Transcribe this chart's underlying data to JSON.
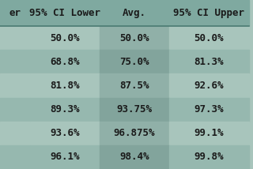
{
  "columns": [
    "95% CI Lower",
    "Avg.",
    "95% CI Upper"
  ],
  "rows": [
    [
      "50.0%",
      "50.0%",
      "50.0%"
    ],
    [
      "68.8%",
      "75.0%",
      "81.3%"
    ],
    [
      "81.8%",
      "87.5%",
      "92.6%"
    ],
    [
      "89.3%",
      "93.75%",
      "97.3%"
    ],
    [
      "93.6%",
      "96.875%",
      "99.1%"
    ],
    [
      "96.1%",
      "98.4%",
      "99.8%"
    ]
  ],
  "header_bg": "#7fa9a0",
  "row_bg_light": "#a8c5bc",
  "row_bg_dark": "#96b8af",
  "avg_col_bg_light": "#90b0a8",
  "avg_col_bg_dark": "#82a49c",
  "header_text_color": "#1a1a1a",
  "cell_text_color": "#1a1a1a",
  "font_size": 9,
  "header_font_size": 9
}
